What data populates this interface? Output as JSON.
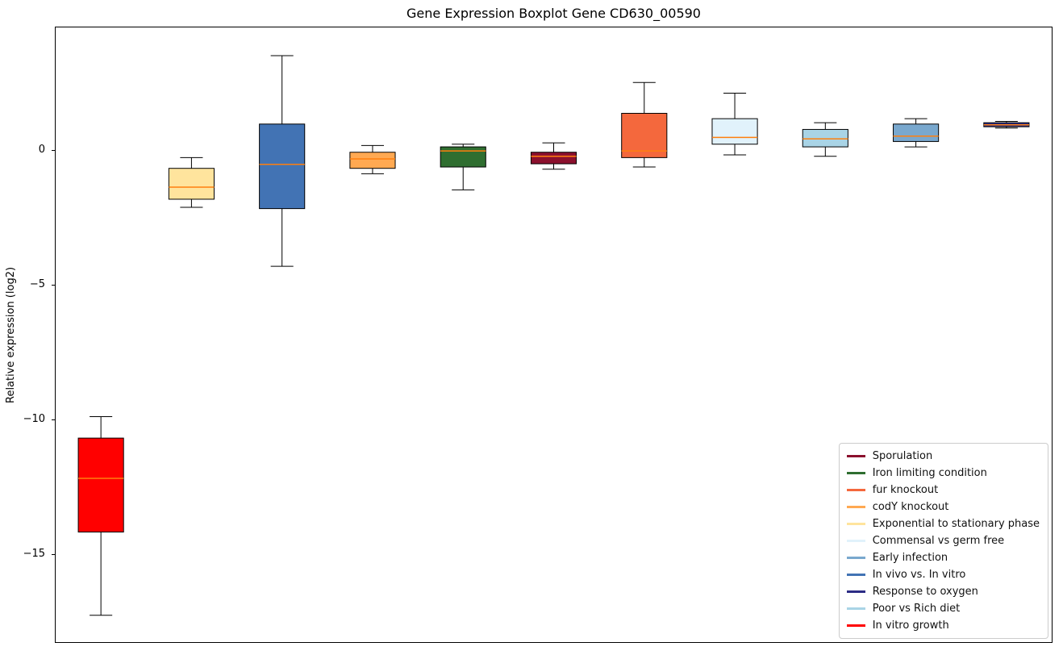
{
  "chart_data": {
    "type": "boxplot",
    "title": "Gene Expression Boxplot Gene CD630_00590",
    "ylabel": "Relative expression (log2)",
    "xlabel": "",
    "ylim": [
      -18.3,
      4.6
    ],
    "xlim": [
      0.5,
      11.5
    ],
    "yticks": [
      0,
      -5,
      -10,
      -15
    ],
    "grid": false,
    "box_width": 0.5,
    "cap_width": 0.25,
    "median_color": "#ff7f0e",
    "whisker_color": "#000000",
    "box_edge_color": "#000000",
    "series": [
      {
        "name": "In vitro growth",
        "color": "#ff0000",
        "whislo": -17.3,
        "q1": -14.2,
        "med": -12.2,
        "q3": -10.7,
        "whishi": -9.9
      },
      {
        "name": "Exponential to stationary phase",
        "color": "#ffe49d",
        "whislo": -2.1,
        "q1": -1.8,
        "med": -1.35,
        "q3": -0.65,
        "whishi": -0.25
      },
      {
        "name": "In vivo vs. In vitro",
        "color": "#4273b4",
        "whislo": -4.3,
        "q1": -2.15,
        "med": -0.5,
        "q3": 1.0,
        "whishi": 3.55
      },
      {
        "name": "codY knockout",
        "color": "#ffa952",
        "whislo": -0.85,
        "q1": -0.65,
        "med": -0.3,
        "q3": -0.05,
        "whishi": 0.2
      },
      {
        "name": "Iron limiting condition",
        "color": "#2f6e30",
        "whislo": -1.45,
        "q1": -0.6,
        "med": 0.0,
        "q3": 0.15,
        "whishi": 0.25
      },
      {
        "name": "Sporulation",
        "color": "#8b102d",
        "whislo": -0.68,
        "q1": -0.48,
        "med": -0.2,
        "q3": -0.05,
        "whishi": 0.3
      },
      {
        "name": "fur knockout",
        "color": "#f4683d",
        "whislo": -0.6,
        "q1": -0.25,
        "med": 0.0,
        "q3": 1.4,
        "whishi": 2.55
      },
      {
        "name": "Commensal vs germ free",
        "color": "#e1f2fb",
        "whislo": -0.15,
        "q1": 0.25,
        "med": 0.5,
        "q3": 1.2,
        "whishi": 2.15
      },
      {
        "name": "Poor vs Rich diet",
        "color": "#a9d4e6",
        "whislo": -0.2,
        "q1": 0.15,
        "med": 0.45,
        "q3": 0.8,
        "whishi": 1.05
      },
      {
        "name": "Early infection",
        "color": "#79a8ce",
        "whislo": 0.15,
        "q1": 0.35,
        "med": 0.55,
        "q3": 1.0,
        "whishi": 1.2
      },
      {
        "name": "Response to oxygen",
        "color": "#2c2c85",
        "whislo": 0.85,
        "q1": 0.9,
        "med": 0.97,
        "q3": 1.05,
        "whishi": 1.1
      }
    ],
    "legend": {
      "position": "lower right",
      "items": [
        {
          "label": "Sporulation",
          "color": "#8b102d"
        },
        {
          "label": "Iron limiting condition",
          "color": "#2f6e30"
        },
        {
          "label": "fur knockout",
          "color": "#f4683d"
        },
        {
          "label": "codY knockout",
          "color": "#ffa952"
        },
        {
          "label": "Exponential to stationary phase",
          "color": "#ffe49d"
        },
        {
          "label": "Commensal vs germ free",
          "color": "#e1f2fb"
        },
        {
          "label": "Early infection",
          "color": "#79a8ce"
        },
        {
          "label": "In vivo vs. In vitro",
          "color": "#4273b4"
        },
        {
          "label": "Response to oxygen",
          "color": "#2c2c85"
        },
        {
          "label": "Poor vs Rich diet",
          "color": "#a9d4e6"
        },
        {
          "label": "In vitro growth",
          "color": "#ff0000"
        }
      ]
    }
  }
}
